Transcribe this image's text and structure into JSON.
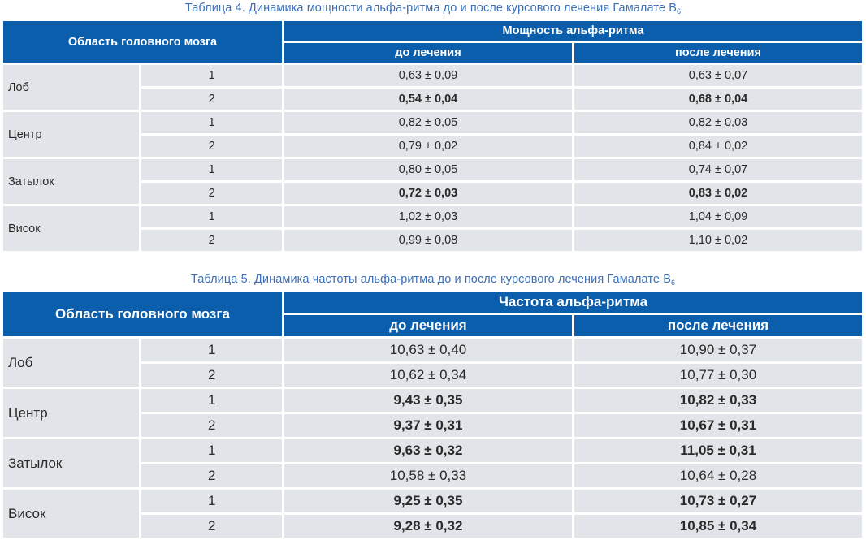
{
  "table4": {
    "caption": "Таблица 4.  Динамика мощности альфа-ритма до и после курсового лечения Гамалате В",
    "caption_sub": "6",
    "area_header": "Область головного мозга",
    "group_header": "Мощность альфа-ритма",
    "before_header": "до лечения",
    "after_header": "после лечения",
    "rows": [
      {
        "region": "Лоб",
        "n1": "1",
        "before1": "0,63 ± 0,09",
        "after1": "0,63 ± 0,07",
        "bold1": false,
        "n2": "2",
        "before2": "0,54 ± 0,04",
        "after2": "0,68 ± 0,04",
        "bold2": true
      },
      {
        "region": "Центр",
        "n1": "1",
        "before1": "0,82 ± 0,05",
        "after1": "0,82 ± 0,03",
        "bold1": false,
        "n2": "2",
        "before2": "0,79 ± 0,02",
        "after2": "0,84 ± 0,02",
        "bold2": false
      },
      {
        "region": "Затылок",
        "n1": "1",
        "before1": "0,80 ± 0,05",
        "after1": "0,74 ± 0,07",
        "bold1": false,
        "n2": "2",
        "before2": "0,72 ± 0,03",
        "after2": "0,83 ± 0,02",
        "bold2": true
      },
      {
        "region": "Висок",
        "n1": "1",
        "before1": "1,02 ± 0,03",
        "after1": "1,04 ± 0,09",
        "bold1": false,
        "n2": "2",
        "before2": "0,99 ± 0,08",
        "after2": "1,10 ± 0,02",
        "bold2": false
      }
    ]
  },
  "table5": {
    "caption": "Таблица 5.  Динамика частоты альфа-ритма до и после курсового лечения Гамалате В",
    "caption_sub": "6",
    "area_header": "Область головного мозга",
    "group_header": "Частота альфа-ритма",
    "before_header": "до лечения",
    "after_header": "после лечения",
    "rows": [
      {
        "region": "Лоб",
        "n1": "1",
        "before1": "10,63 ± 0,40",
        "after1": "10,90 ± 0,37",
        "bold1": false,
        "n2": "2",
        "before2": "10,62 ± 0,34",
        "after2": "10,77 ± 0,30",
        "bold2": false
      },
      {
        "region": "Центр",
        "n1": "1",
        "before1": "9,43 ± 0,35",
        "after1": "10,82 ± 0,33",
        "bold1": true,
        "n2": "2",
        "before2": "9,37 ± 0,31",
        "after2": "10,67 ± 0,31",
        "bold2": true
      },
      {
        "region": "Затылок",
        "n1": "1",
        "before1": "9,63 ± 0,32",
        "after1": "11,05 ± 0,31",
        "bold1": true,
        "n2": "2",
        "before2": "10,58 ± 0,33",
        "after2": "10,64 ± 0,28",
        "bold2": false
      },
      {
        "region": "Висок",
        "n1": "1",
        "before1": "9,25 ± 0,35",
        "after1": "10,73 ± 0,27",
        "bold1": true,
        "n2": "2",
        "before2": "9,28 ± 0,32",
        "after2": "10,85 ± 0,34",
        "bold2": true
      }
    ]
  }
}
